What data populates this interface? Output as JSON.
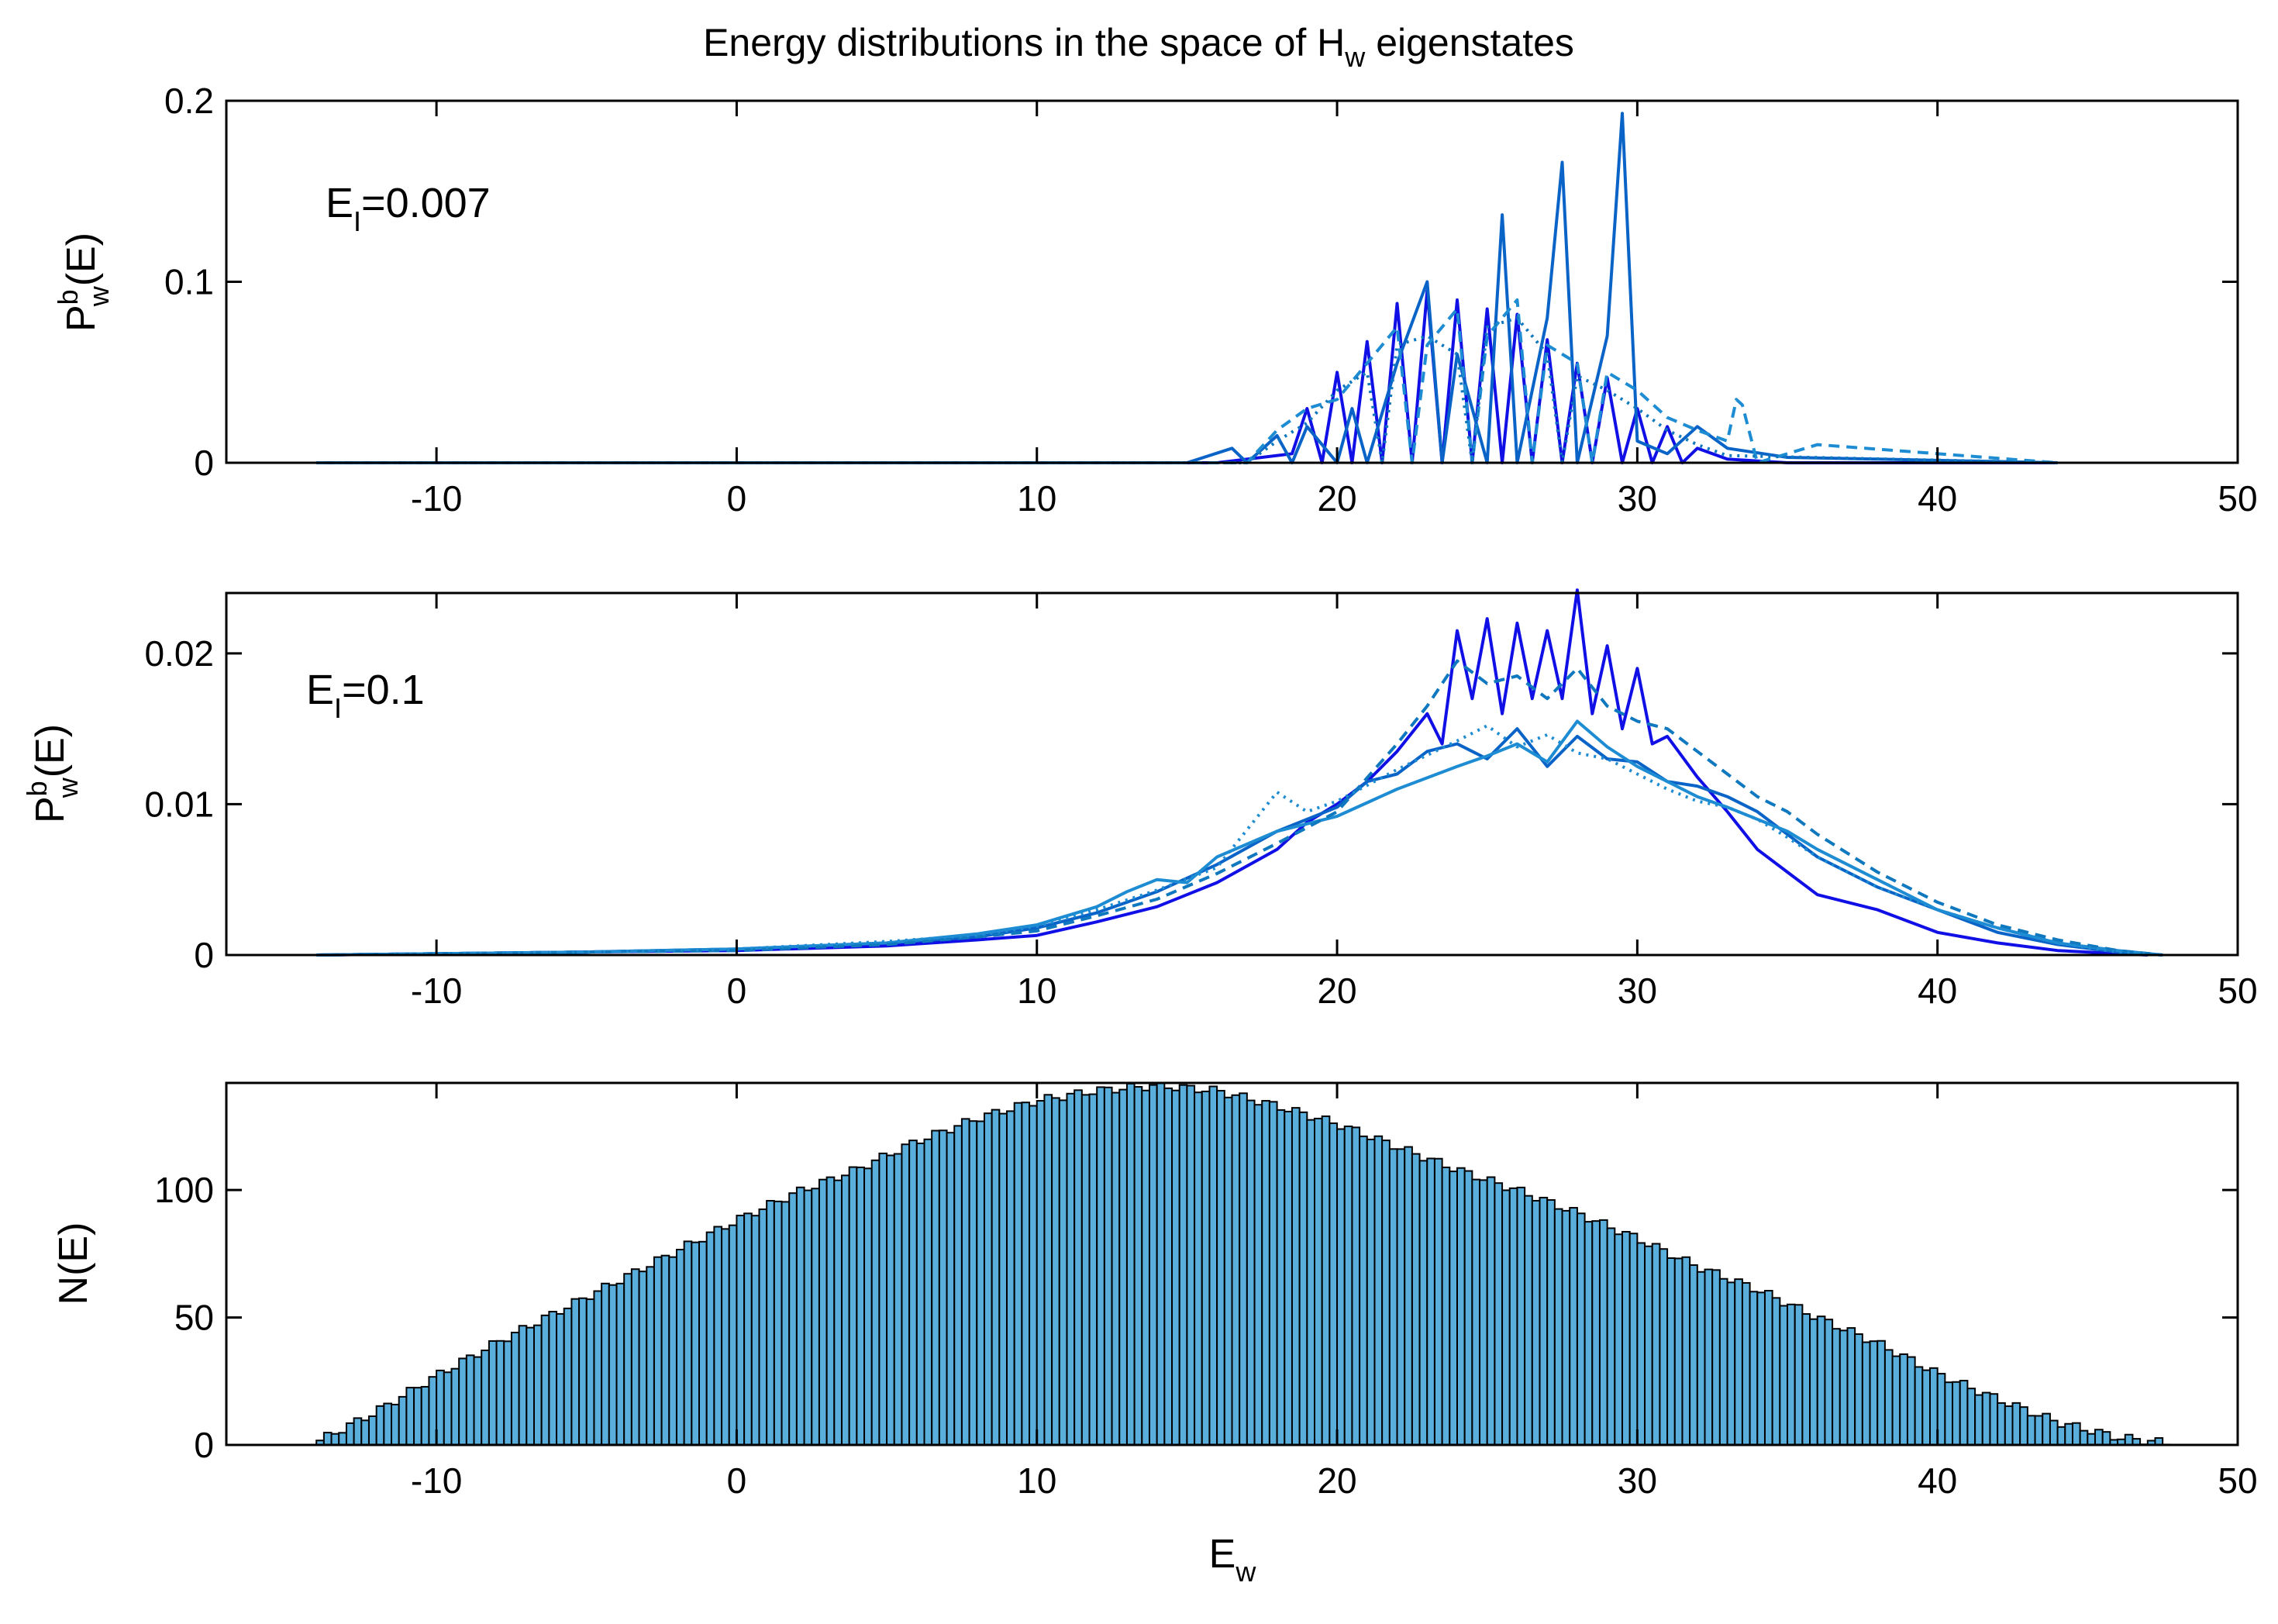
{
  "figure_title": {
    "prefix": "Energy distributions in the space of H",
    "subscript": "w",
    "suffix": " eigenstates"
  },
  "colors": {
    "blue": "#1010e6",
    "mid": "#0a64c8",
    "light": "#1e8cd2",
    "steel": "#0f78be",
    "bar": "#5aaedc"
  },
  "chart_data": [
    {
      "type": "line",
      "panel": "top",
      "ylabel": {
        "main": "P",
        "sup": "b",
        "sub": "w",
        "tail": "(E)"
      },
      "annotation": {
        "main": "E",
        "sub": "I",
        "tail": "=0.007"
      },
      "xlim": [
        -17,
        50
      ],
      "ylim": [
        0,
        0.2
      ],
      "xticks": [
        -10,
        0,
        10,
        20,
        30,
        40,
        50
      ],
      "yticks": [
        0,
        0.1,
        0.2
      ],
      "ytick_labels": [
        "0",
        "0.1",
        "0.2"
      ],
      "series": [
        {
          "name": "s1",
          "style": "solid",
          "color": "#1010e6",
          "x": [
            -14,
            16,
            18.5,
            19,
            19.5,
            20,
            20.5,
            21,
            21.5,
            22,
            22.5,
            23,
            23.5,
            24,
            24.5,
            25,
            25.5,
            26,
            26.5,
            27,
            27.5,
            28,
            28.5,
            29,
            29.5,
            30,
            30.5,
            31,
            31.5,
            32,
            33,
            35,
            44
          ],
          "y": [
            0,
            0,
            0.005,
            0.03,
            0,
            0.05,
            0,
            0.067,
            0,
            0.088,
            0,
            0.095,
            0,
            0.09,
            0,
            0.085,
            0,
            0.082,
            0,
            0.068,
            0,
            0.055,
            0,
            0.047,
            0,
            0.03,
            0,
            0.02,
            0,
            0.008,
            0.002,
            0,
            0
          ]
        },
        {
          "name": "s2",
          "style": "solid",
          "color": "#0a64c8",
          "x": [
            -14,
            15,
            16.5,
            17,
            18,
            18.5,
            19,
            20,
            20.5,
            21,
            22,
            23,
            23.5,
            24,
            25,
            25.5,
            26,
            27,
            27.5,
            28,
            29,
            29.5,
            30,
            31,
            32,
            33,
            35,
            38,
            44
          ],
          "y": [
            0,
            0,
            0.008,
            0,
            0.015,
            0,
            0.02,
            0,
            0.03,
            0,
            0.055,
            0.1,
            0,
            0.06,
            0,
            0.137,
            0,
            0.08,
            0.166,
            0,
            0.07,
            0.193,
            0.012,
            0.005,
            0.02,
            0.008,
            0.003,
            0.002,
            0
          ]
        },
        {
          "name": "s3",
          "style": "dash",
          "color": "#1e8cd2",
          "x": [
            -14,
            17,
            18,
            19,
            20,
            21,
            22,
            22.5,
            23,
            24,
            24.5,
            25,
            26,
            26.5,
            27,
            28,
            28.5,
            29,
            30,
            31,
            32,
            33,
            33.3,
            33.5,
            34,
            36,
            44
          ],
          "y": [
            0,
            0,
            0.018,
            0.03,
            0.035,
            0.055,
            0.075,
            0,
            0.065,
            0.085,
            0,
            0.07,
            0.09,
            0,
            0.065,
            0.055,
            0,
            0.05,
            0.04,
            0.025,
            0.018,
            0.012,
            0.035,
            0.032,
            0,
            0.01,
            0
          ]
        },
        {
          "name": "s4",
          "style": "dot",
          "color": "#0f78be",
          "x": [
            -14,
            17,
            18,
            19,
            20,
            21,
            21.5,
            22,
            23,
            24,
            24.5,
            25,
            26,
            27,
            27.5,
            28,
            29,
            30,
            31,
            32,
            33,
            44
          ],
          "y": [
            0,
            0,
            0.012,
            0.022,
            0.04,
            0.05,
            0,
            0.065,
            0.07,
            0.06,
            0,
            0.075,
            0.08,
            0.06,
            0,
            0.048,
            0.04,
            0.03,
            0.018,
            0.01,
            0.004,
            0
          ]
        }
      ]
    },
    {
      "type": "line",
      "panel": "middle",
      "ylabel": {
        "main": "P",
        "sup": "b",
        "sub": "w",
        "tail": "(E)"
      },
      "annotation": {
        "main": "E",
        "sub": "I",
        "tail": "=0.1"
      },
      "xlim": [
        -17,
        50
      ],
      "ylim": [
        0,
        0.024
      ],
      "xticks": [
        -10,
        0,
        10,
        20,
        30,
        40,
        50
      ],
      "yticks": [
        0,
        0.01,
        0.02
      ],
      "ytick_labels": [
        "0",
        "0.01",
        "0.02"
      ],
      "series": [
        {
          "name": "s1",
          "style": "solid",
          "color": "#1010e6",
          "x": [
            -14,
            -5,
            0,
            5,
            8,
            10,
            12,
            14,
            16,
            18,
            19,
            20,
            21,
            22,
            23,
            23.5,
            24,
            24.5,
            25,
            25.5,
            26,
            26.5,
            27,
            27.5,
            28,
            28.5,
            29,
            29.5,
            30,
            30.5,
            31,
            32,
            33,
            34,
            35,
            36,
            38,
            40,
            42,
            44,
            46,
            47
          ],
          "y": [
            0,
            0.0002,
            0.0003,
            0.0006,
            0.001,
            0.0013,
            0.0022,
            0.0032,
            0.0048,
            0.007,
            0.0088,
            0.01,
            0.0115,
            0.0135,
            0.016,
            0.014,
            0.0215,
            0.017,
            0.0223,
            0.016,
            0.022,
            0.017,
            0.0215,
            0.017,
            0.0242,
            0.016,
            0.0205,
            0.015,
            0.019,
            0.014,
            0.0145,
            0.0118,
            0.0095,
            0.007,
            0.0055,
            0.004,
            0.003,
            0.0015,
            0.0008,
            0.0003,
            0.0001,
            0
          ]
        },
        {
          "name": "s2",
          "style": "solid",
          "color": "#0a64c8",
          "x": [
            -14,
            -5,
            0,
            5,
            8,
            10,
            12,
            14,
            16,
            18,
            20,
            21,
            22,
            23,
            24,
            25,
            26,
            27,
            28,
            29,
            30,
            31,
            32,
            33,
            34,
            35,
            36,
            38,
            40,
            42,
            44,
            46,
            47.5
          ],
          "y": [
            0,
            0.0002,
            0.0004,
            0.0008,
            0.0012,
            0.0018,
            0.0028,
            0.0042,
            0.006,
            0.0082,
            0.0098,
            0.0115,
            0.012,
            0.0135,
            0.014,
            0.013,
            0.015,
            0.0125,
            0.0145,
            0.013,
            0.0128,
            0.0115,
            0.0112,
            0.0105,
            0.0095,
            0.008,
            0.0065,
            0.0045,
            0.003,
            0.0015,
            0.0007,
            0.0002,
            0
          ]
        },
        {
          "name": "s3",
          "style": "solid",
          "color": "#1e8cd2",
          "x": [
            -14,
            -5,
            0,
            5,
            8,
            10,
            12,
            13,
            14,
            15,
            16,
            18,
            20,
            22,
            24,
            25,
            26,
            27,
            28,
            29,
            30,
            31,
            32,
            33,
            34,
            35,
            36,
            38,
            40,
            42,
            44,
            46,
            47.5
          ],
          "y": [
            0,
            0.0002,
            0.0004,
            0.0008,
            0.0014,
            0.002,
            0.0032,
            0.0042,
            0.005,
            0.0048,
            0.0065,
            0.0082,
            0.0092,
            0.011,
            0.0125,
            0.0132,
            0.014,
            0.0128,
            0.0155,
            0.0138,
            0.0125,
            0.0115,
            0.0105,
            0.0098,
            0.009,
            0.0082,
            0.007,
            0.005,
            0.003,
            0.0018,
            0.0008,
            0.0003,
            0
          ]
        },
        {
          "name": "s4",
          "style": "dash",
          "color": "#0f78be",
          "x": [
            -14,
            -5,
            0,
            5,
            8,
            10,
            12,
            14,
            16,
            18,
            20,
            22,
            23,
            24,
            25,
            26,
            27,
            28,
            29,
            30,
            31,
            32,
            33,
            34,
            35,
            36,
            38,
            40,
            42,
            44,
            46,
            47.5
          ],
          "y": [
            0,
            0.0002,
            0.0003,
            0.0007,
            0.0012,
            0.0016,
            0.0026,
            0.0037,
            0.0054,
            0.0074,
            0.0095,
            0.014,
            0.0165,
            0.0195,
            0.018,
            0.0185,
            0.017,
            0.019,
            0.0165,
            0.0155,
            0.015,
            0.0135,
            0.012,
            0.0105,
            0.0095,
            0.008,
            0.0055,
            0.0035,
            0.002,
            0.001,
            0.0003,
            0
          ]
        },
        {
          "name": "s5",
          "style": "dot",
          "color": "#1e8cd2",
          "x": [
            -14,
            -5,
            0,
            5,
            8,
            10,
            12,
            14,
            16,
            18,
            19,
            20,
            22,
            24,
            25,
            26,
            27,
            28,
            29,
            30,
            31,
            32,
            33,
            34,
            35,
            36,
            38,
            40,
            42,
            44,
            46,
            47.5
          ],
          "y": [
            0,
            0.0002,
            0.0004,
            0.0009,
            0.0013,
            0.0019,
            0.003,
            0.0043,
            0.0058,
            0.0108,
            0.0095,
            0.0102,
            0.0123,
            0.0142,
            0.0152,
            0.0138,
            0.0146,
            0.0134,
            0.013,
            0.012,
            0.011,
            0.0102,
            0.0098,
            0.009,
            0.0078,
            0.0065,
            0.0045,
            0.003,
            0.0018,
            0.0008,
            0.0002,
            0
          ]
        }
      ]
    },
    {
      "type": "bar",
      "panel": "bottom",
      "ylabel": {
        "main": "N(E)"
      },
      "xlabel": {
        "main": "E",
        "sub": "w"
      },
      "xlim": [
        -17,
        50
      ],
      "ylim": [
        0,
        142
      ],
      "xticks": [
        -10,
        0,
        10,
        20,
        30,
        40,
        50
      ],
      "yticks": [
        0,
        50,
        100
      ],
      "ytick_labels": [
        "0",
        "50",
        "100"
      ],
      "bin_start": -14.0,
      "bin_width": 0.25,
      "profile_x": [
        -14,
        -12,
        -10,
        -8,
        -6,
        -4,
        -2,
        0,
        2,
        4,
        6,
        8,
        10,
        12,
        14,
        16,
        18,
        20,
        22,
        24,
        26,
        28,
        30,
        32,
        34,
        36,
        38,
        40,
        42,
        44,
        46,
        47.5,
        48
      ],
      "profile_y": [
        1,
        13,
        27,
        40,
        52,
        64,
        76,
        88,
        99,
        108,
        119,
        128,
        135,
        139,
        141,
        139,
        133,
        126,
        117,
        108,
        100,
        91,
        81,
        70,
        61,
        50,
        40,
        28,
        18,
        9,
        3,
        1,
        0
      ]
    }
  ]
}
